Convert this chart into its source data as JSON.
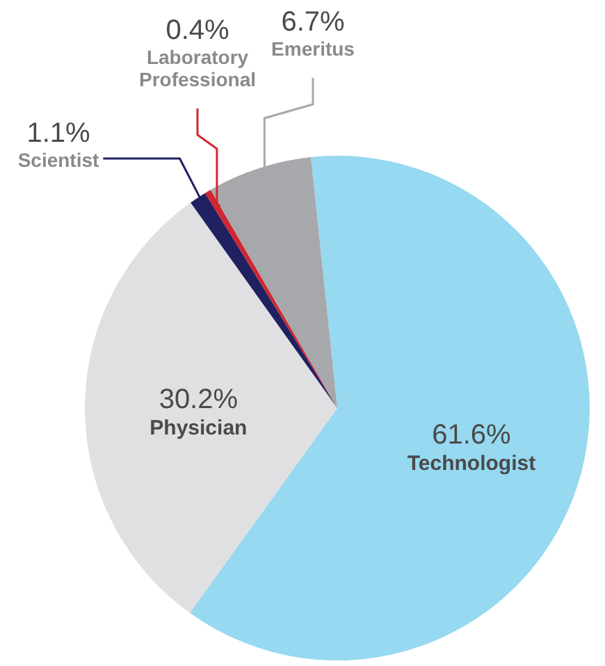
{
  "chart_data": {
    "type": "pie",
    "categories": [
      "Technologist",
      "Physician",
      "Scientist",
      "Laboratory Professional",
      "Emeritus"
    ],
    "values": [
      61.6,
      30.2,
      1.1,
      0.4,
      6.7
    ],
    "value_labels": [
      "61.6%",
      "30.2%",
      "1.1%",
      "0.4%",
      "6.7%"
    ],
    "colors": [
      "#96d9f0",
      "#e0e0e2",
      "#1f2160",
      "#d22630",
      "#a7a8ab"
    ],
    "legend": false
  }
}
